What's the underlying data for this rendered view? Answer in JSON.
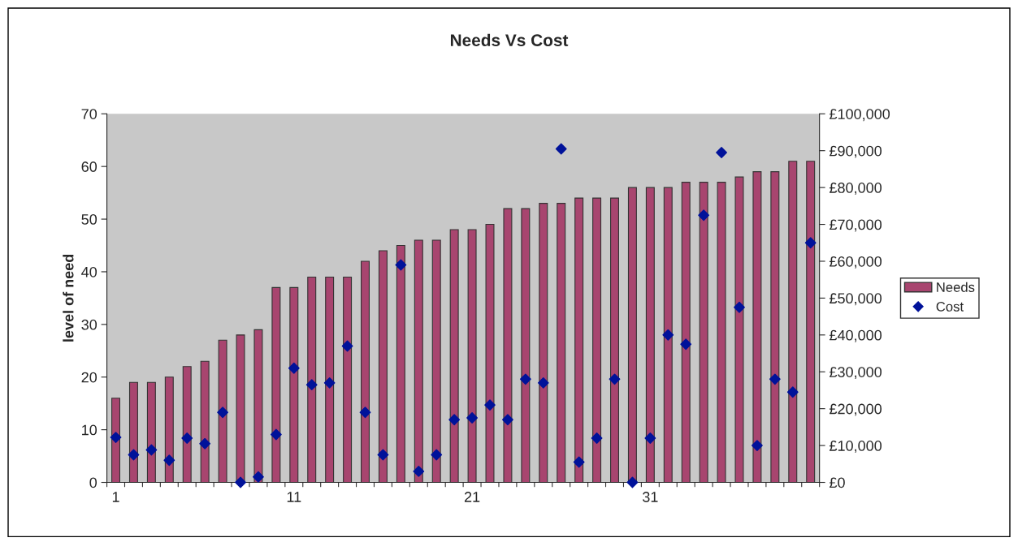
{
  "chart_data": {
    "type": "bar",
    "title": "Needs Vs Cost",
    "ylabel": "level of need",
    "categories": [
      "1",
      null,
      null,
      null,
      null,
      null,
      null,
      null,
      null,
      null,
      "11",
      null,
      null,
      null,
      null,
      null,
      null,
      null,
      null,
      null,
      "21",
      null,
      null,
      null,
      null,
      null,
      null,
      null,
      null,
      null,
      "31",
      null,
      null,
      null,
      null,
      null,
      null,
      null,
      null,
      null
    ],
    "series": [
      {
        "name": "Needs",
        "color": "#a8456f",
        "values": [
          16,
          19,
          19,
          20,
          22,
          23,
          27,
          28,
          29,
          37,
          37,
          39,
          39,
          39,
          42,
          44,
          45,
          46,
          46,
          48,
          48,
          49,
          52,
          52,
          53,
          53,
          54,
          54,
          54,
          56,
          56,
          56,
          57,
          57,
          57,
          58,
          59,
          59,
          61,
          61
        ]
      },
      {
        "name": "Cost",
        "type": "scatter",
        "axis": "y2",
        "color": "#00129a",
        "marker": "diamond",
        "values": [
          12200,
          7500,
          8800,
          6000,
          12000,
          10500,
          19000,
          0,
          1500,
          13000,
          31000,
          26500,
          27000,
          37000,
          19000,
          7500,
          59000,
          3000,
          7500,
          17000,
          17500,
          21000,
          17000,
          28000,
          27000,
          90500,
          5500,
          12000,
          28000,
          0,
          12000,
          40000,
          37500,
          72500,
          89500,
          47500,
          10000,
          28000,
          24500,
          65000
        ]
      }
    ],
    "ylim": [
      0,
      70
    ],
    "yticks": [
      0,
      10,
      20,
      30,
      40,
      50,
      60,
      70
    ],
    "y2lim": [
      0,
      100000
    ],
    "y2ticks": [
      {
        "value": 0,
        "label": "£0"
      },
      {
        "value": 10000,
        "label": "£10,000"
      },
      {
        "value": 20000,
        "label": "£20,000"
      },
      {
        "value": 30000,
        "label": "£30,000"
      },
      {
        "value": 40000,
        "label": "£40,000"
      },
      {
        "value": 50000,
        "label": "£50,000"
      },
      {
        "value": 60000,
        "label": "£60,000"
      },
      {
        "value": 70000,
        "label": "£70,000"
      },
      {
        "value": 80000,
        "label": "£80,000"
      },
      {
        "value": 90000,
        "label": "£90,000"
      },
      {
        "value": 100000,
        "label": "£100,000"
      }
    ],
    "grid": false,
    "legend": "right"
  }
}
